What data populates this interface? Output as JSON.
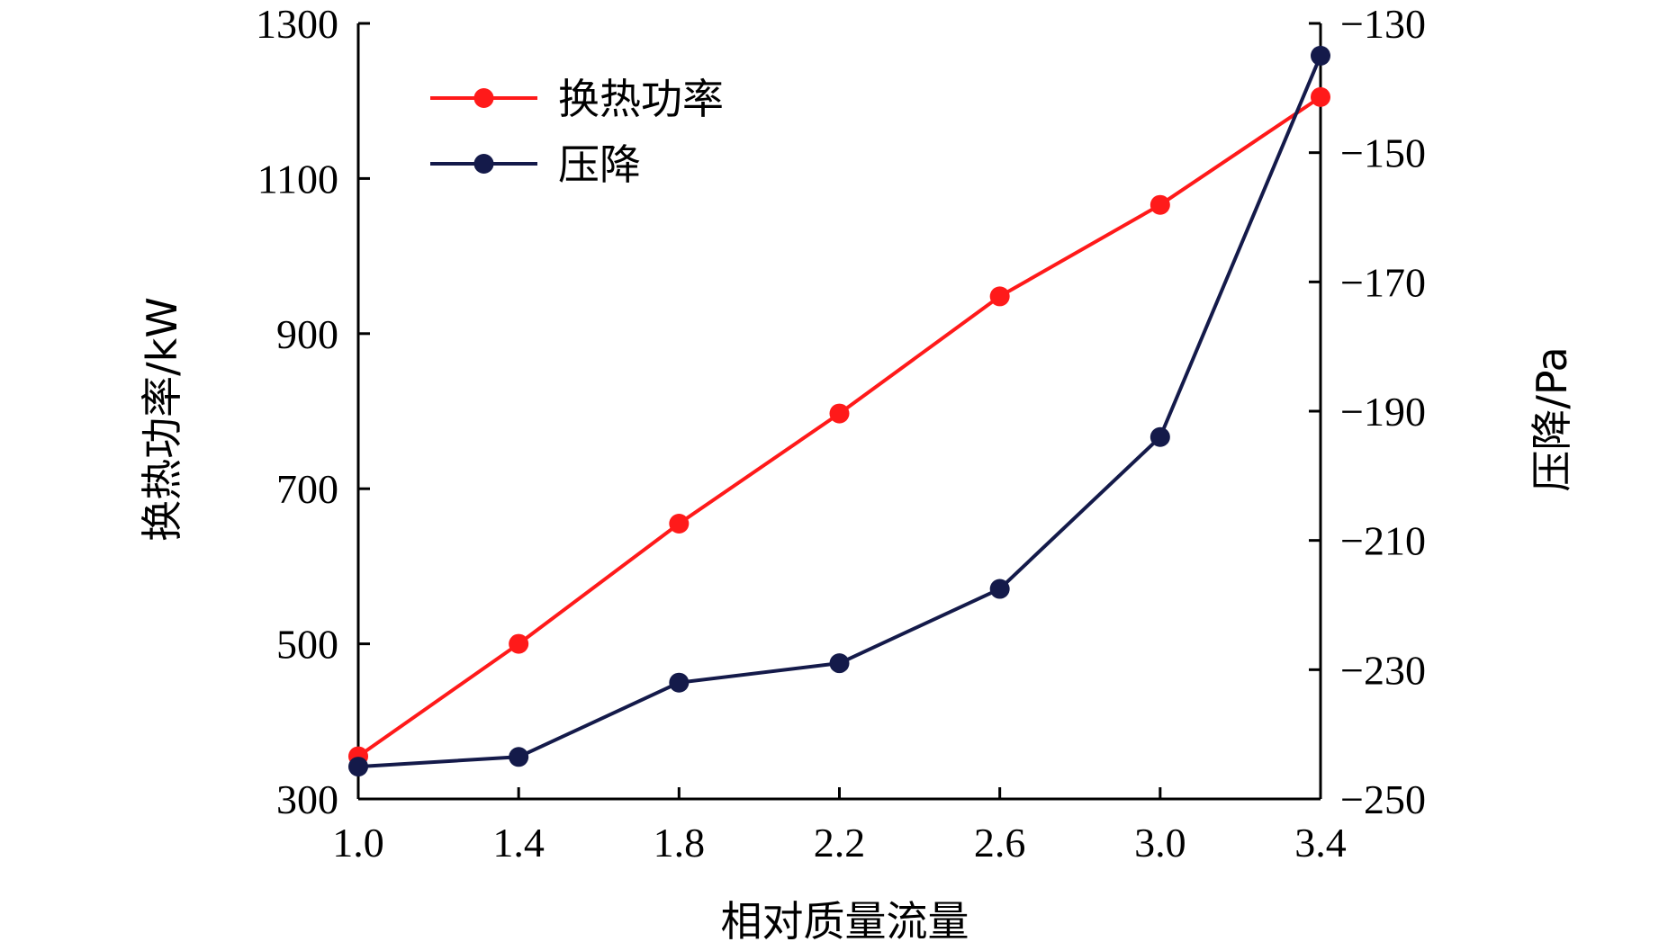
{
  "chart_data": {
    "type": "line",
    "xlabel": "相对质量流量",
    "ylabel_left": "换热功率/kW",
    "ylabel_right": "压降/Pa",
    "x": [
      1.0,
      1.4,
      1.8,
      2.2,
      2.6,
      3.0,
      3.4
    ],
    "x_ticks": [
      "1.0",
      "1.4",
      "1.8",
      "2.2",
      "2.6",
      "3.0",
      "3.4"
    ],
    "xlim": [
      1.0,
      3.4
    ],
    "ylim_left": [
      300,
      1300
    ],
    "yticks_left": [
      "300",
      "500",
      "700",
      "900",
      "1100",
      "1300"
    ],
    "ylim_right": [
      -250,
      -130
    ],
    "yticks_right": [
      "−130",
      "−150",
      "−170",
      "−190",
      "−210",
      "−230",
      "−250"
    ],
    "legend_position": "top-left",
    "grid": false,
    "series": [
      {
        "name": "换热功率",
        "axis": "left",
        "color": "#ff1a1a",
        "values": [
          355,
          500,
          655,
          797,
          948,
          1066,
          1205
        ]
      },
      {
        "name": "压降",
        "axis": "right",
        "color": "#141a4a",
        "values": [
          -245,
          -243.5,
          -232,
          -229,
          -217.5,
          -194,
          -135
        ]
      }
    ]
  }
}
